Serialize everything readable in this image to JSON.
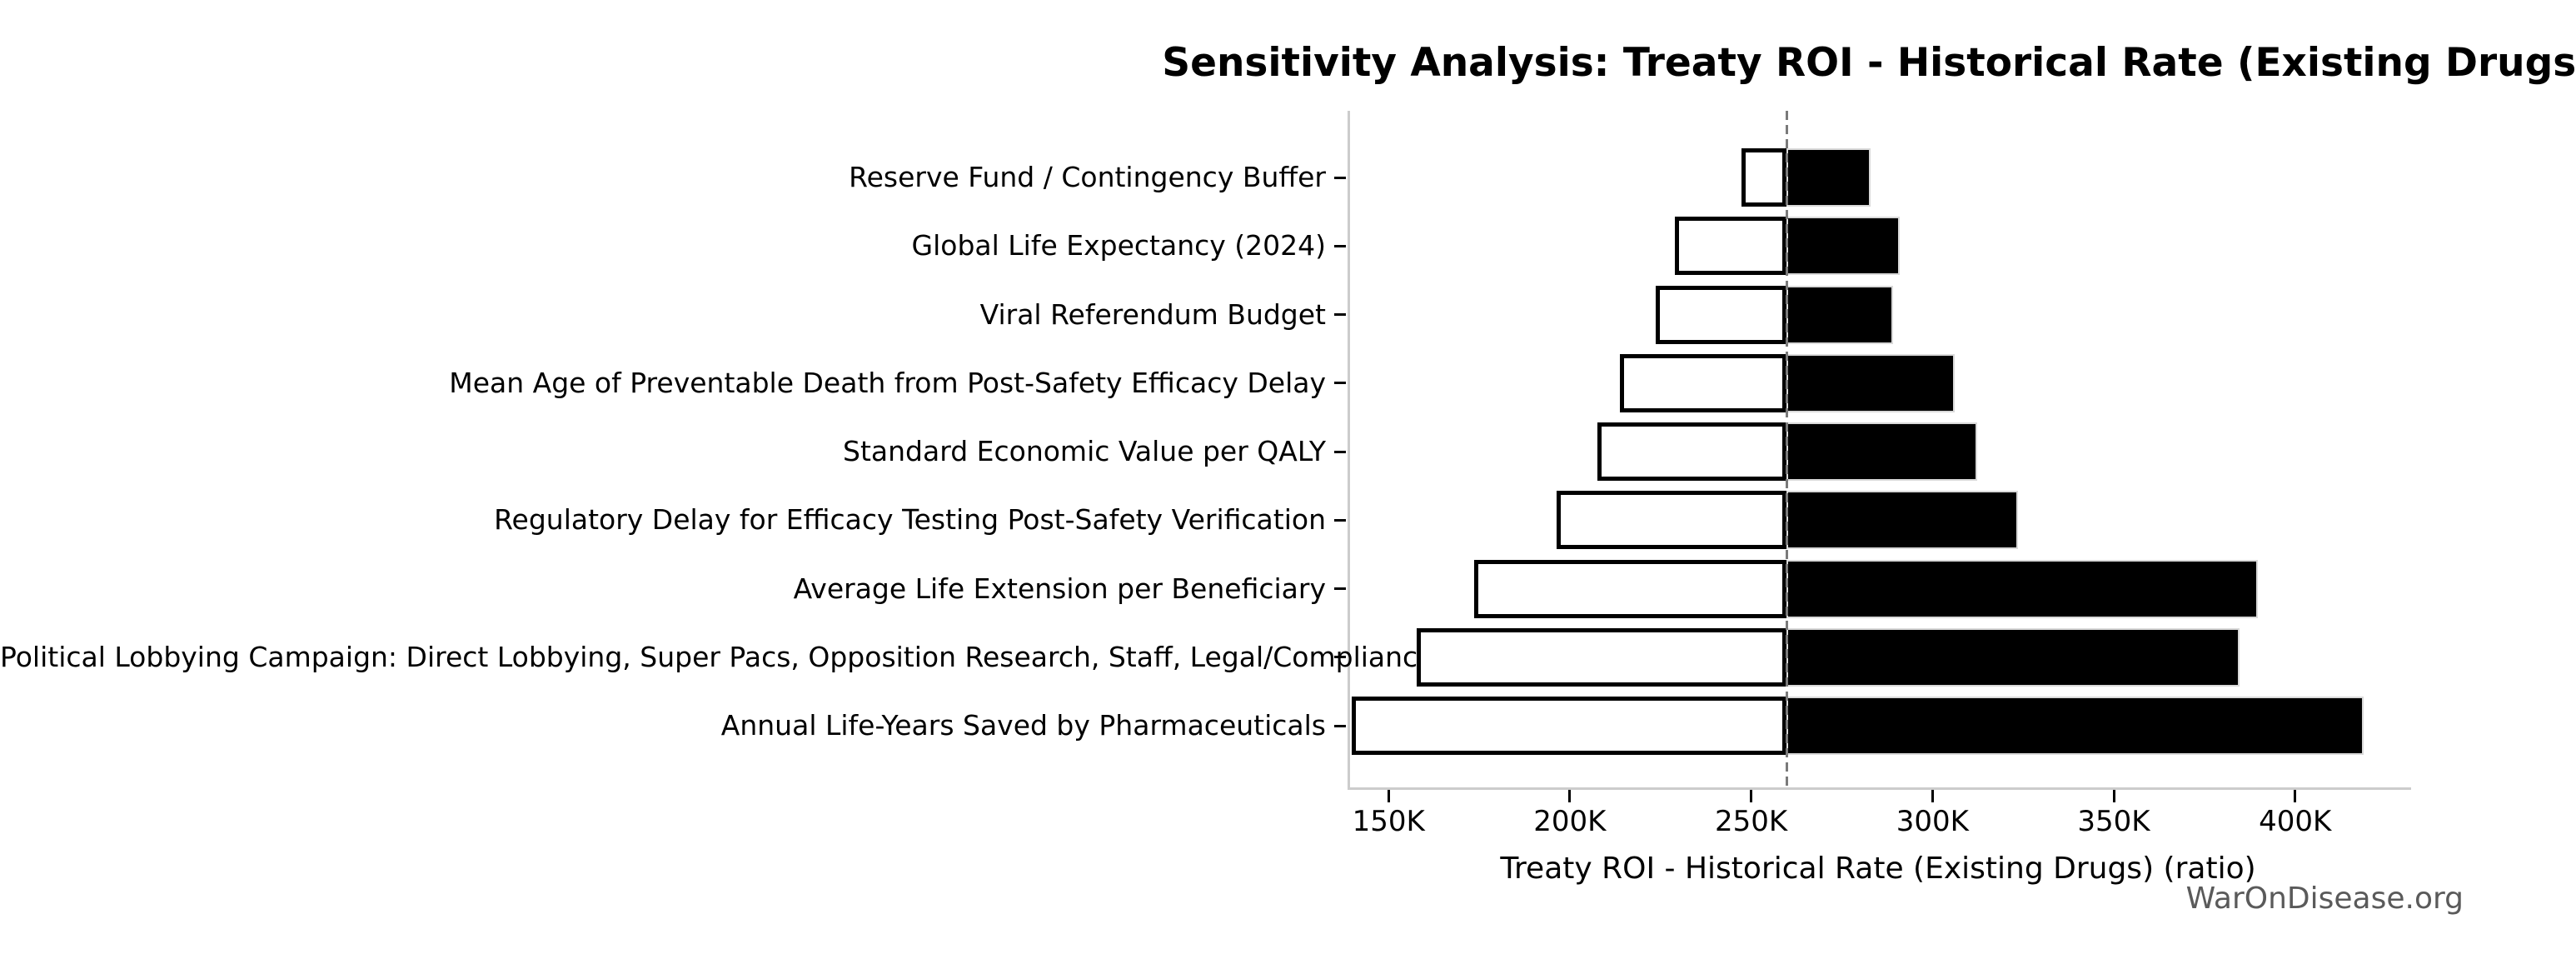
{
  "watermark": "WarOnDisease.org",
  "chart_data": {
    "type": "bar",
    "subtype": "tornado",
    "title": "Sensitivity Analysis: Treaty ROI - Historical Rate (Existing Drugs)",
    "xlabel": "Treaty ROI - Historical Rate (Existing Drugs) (ratio)",
    "baseline_value": 259100,
    "xlim": [
      138700,
      431300
    ],
    "grid": false,
    "legend": null,
    "x_ticks": [
      {
        "value": 150000,
        "label": "150K"
      },
      {
        "value": 200000,
        "label": "200K"
      },
      {
        "value": 250000,
        "label": "250K"
      },
      {
        "value": 300000,
        "label": "300K"
      },
      {
        "value": 350000,
        "label": "350K"
      },
      {
        "value": 400000,
        "label": "400K"
      }
    ],
    "parameters": [
      {
        "label": "Reserve Fund / Contingency Buffer",
        "low": 246700,
        "high": 282300
      },
      {
        "label": "Global Life Expectancy (2024)",
        "low": 228200,
        "high": 290200
      },
      {
        "label": "Viral Referendum Budget",
        "low": 223000,
        "high": 288500
      },
      {
        "label": "Mean Age of Preventable Death from Post-Safety Efficacy Delay",
        "low": 213100,
        "high": 305400
      },
      {
        "label": "Standard Economic Value per QALY",
        "low": 206800,
        "high": 311600
      },
      {
        "label": "Regulatory Delay for Efficacy Testing Post-Safety Verification",
        "low": 195700,
        "high": 323000
      },
      {
        "label": "Average Life Extension per Beneficiary",
        "low": 172900,
        "high": 389100
      },
      {
        "label": "Political Lobbying Campaign: Direct Lobbying, Super Pacs, Opposition Research, Staff, Legal/Compliance",
        "low": 157000,
        "high": 384100
      },
      {
        "label": "Annual Life-Years Saved by Pharmaceuticals",
        "low": 139200,
        "high": 418300
      }
    ],
    "colors": {
      "low_fill": "#ffffff",
      "low_edge": "#000000",
      "high_fill": "#000000",
      "high_edge": "#d9d9d9",
      "baseline_line": "#7a7a7a",
      "spine": "#cccccc",
      "watermark": "#5a5a5a"
    }
  }
}
